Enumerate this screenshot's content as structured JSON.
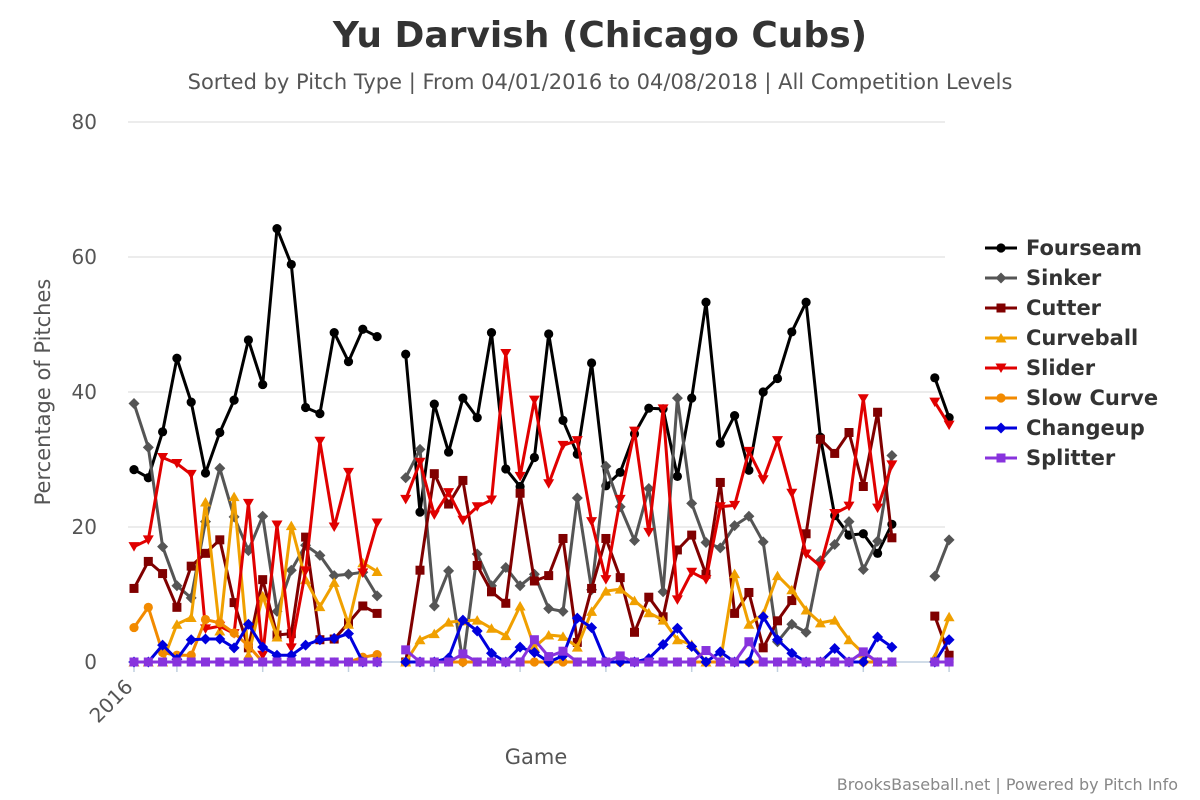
{
  "chart_data": {
    "type": "line",
    "title": "Yu Darvish (Chicago Cubs)",
    "subtitle": "Sorted by Pitch Type | From 04/01/2016 to 04/08/2018 | All Competition Levels",
    "xlabel": "Game",
    "ylabel": "Percentage of Pitches",
    "x_tick_label": "2016",
    "ylim": [
      0,
      80
    ],
    "yticks": [
      0,
      20,
      40,
      60,
      80
    ],
    "grid": true,
    "legend_position": "right",
    "credit": "BrooksBaseball.net | Powered by Pitch Info",
    "segments": [
      [
        1,
        18
      ],
      [
        20,
        54
      ],
      [
        57,
        58
      ]
    ],
    "series": [
      {
        "name": "Fourseam",
        "color": "#000000",
        "marker": "circle",
        "values": [
          28.5,
          27.3,
          34.1,
          45,
          38.5,
          28,
          34,
          38.8,
          47.7,
          41.1,
          64.2,
          58.9,
          37.7,
          36.8,
          48.8,
          44.5,
          49.3,
          48.2,
          null,
          45.6,
          22.2,
          38.2,
          31.1,
          39.1,
          36.2,
          48.8,
          28.6,
          26,
          30.3,
          48.6,
          35.8,
          30.8,
          44.3,
          26.1,
          28.1,
          33.8,
          37.6,
          37.5,
          27.5,
          39.1,
          53.3,
          32.4,
          36.5,
          28.4,
          40,
          42,
          48.9,
          53.3,
          33.3,
          21.7,
          18.8,
          19.0,
          16.1,
          20.4,
          null,
          null,
          42.1,
          36.2
        ]
      },
      {
        "name": "Sinker",
        "color": "#555555",
        "marker": "diamond",
        "values": [
          38.3,
          31.8,
          17.1,
          11.3,
          9.5,
          20.8,
          28.7,
          21.5,
          16.5,
          21.6,
          7.5,
          13.6,
          17.3,
          15.8,
          12.8,
          13,
          13.3,
          9.8,
          null,
          27.3,
          31.5,
          8.3,
          13.5,
          0.0,
          16,
          11.3,
          14.0,
          11.3,
          13,
          7.9,
          7.5,
          24.3,
          10.7,
          29,
          23,
          18,
          25.7,
          10.4,
          39.1,
          23.5,
          17.7,
          16.9,
          20.2,
          21.6,
          17.8,
          3,
          5.6,
          4.4,
          15,
          17.4,
          20.8,
          13.7,
          17.9,
          30.6,
          null,
          null,
          12.7,
          18.1
        ]
      },
      {
        "name": "Cutter",
        "color": "#800000",
        "marker": "square",
        "values": [
          10.9,
          14.9,
          13.1,
          8.1,
          14.2,
          16.1,
          18.1,
          8.8,
          2.1,
          12.2,
          4,
          4.2,
          18.5,
          3.3,
          3.4,
          5.8,
          8.3,
          7.2,
          null,
          0,
          13.6,
          27.9,
          23.4,
          26.9,
          14.3,
          10.4,
          8.7,
          25,
          12,
          12.8,
          18.3,
          2.9,
          10.9,
          18.3,
          12.5,
          4.4,
          9.6,
          6.7,
          16.6,
          18.8,
          13,
          26.6,
          7.2,
          10.3,
          2.1,
          6.1,
          9.1,
          19,
          33,
          30.9,
          34,
          26,
          37,
          18.4,
          null,
          null,
          6.8,
          1
        ]
      },
      {
        "name": "Curveball",
        "color": "#f0a000",
        "marker": "triangle",
        "values": [
          0,
          0,
          0,
          5.6,
          6.6,
          23.7,
          4.6,
          24.5,
          1,
          9.8,
          3.7,
          20.2,
          12.2,
          8.2,
          11.8,
          5.6,
          14.7,
          13.4,
          null,
          0,
          3.3,
          4.2,
          5.9,
          6.1,
          6.2,
          5,
          3.9,
          8.3,
          2.2,
          4,
          3.8,
          2.2,
          7.5,
          10.5,
          10.8,
          9.1,
          7.3,
          6.2,
          3.3,
          2.6,
          0,
          0,
          13.1,
          5.6,
          7.1,
          12.8,
          10.7,
          7.7,
          5.8,
          6.2,
          3.3,
          1.3,
          0,
          0.0,
          null,
          null,
          0.7,
          6.7
        ]
      },
      {
        "name": "Slider",
        "color": "#e00000",
        "marker": "triangle-down",
        "values": [
          17.1,
          18.1,
          30.3,
          29.4,
          27.8,
          4.9,
          5.3,
          4.2,
          23.5,
          1,
          20.3,
          2.1,
          13.5,
          32.7,
          20,
          28.1,
          13.2,
          20.6,
          null,
          24.1,
          29.6,
          21.8,
          25.1,
          21,
          23,
          24,
          45.7,
          27.5,
          38.8,
          26.4,
          32.1,
          32.8,
          20.8,
          12.2,
          24.1,
          34.2,
          19.2,
          37.5,
          9.2,
          13.3,
          12.2,
          23,
          23.2,
          31.2,
          27,
          32.8,
          25,
          16,
          14.2,
          22,
          23.1,
          39,
          22.8,
          29.2,
          null,
          null,
          38.5,
          35.1
        ]
      },
      {
        "name": "Slow Curve",
        "color": "#f28a00",
        "marker": "circle",
        "values": [
          5.1,
          8.1,
          1.4,
          1,
          1,
          6.3,
          5.8,
          4.3,
          2.4,
          0,
          0,
          0,
          0,
          0,
          0,
          0,
          0.7,
          1.1,
          null,
          0,
          0,
          0,
          0,
          0,
          0,
          0,
          0,
          0,
          0,
          0,
          0,
          0,
          0,
          0,
          0,
          0,
          0,
          0,
          0,
          0,
          0,
          0,
          0,
          0,
          0,
          0,
          0,
          0,
          0,
          0,
          0,
          0,
          0,
          0,
          null,
          null,
          0,
          0
        ]
      },
      {
        "name": "Changeup",
        "color": "#0000dd",
        "marker": "diamond",
        "values": [
          0,
          0,
          2.5,
          0.4,
          3.3,
          3.4,
          3.4,
          2.1,
          5.6,
          2.2,
          1,
          1,
          2.5,
          3.3,
          3.5,
          4.2,
          0,
          0,
          null,
          0,
          0,
          0,
          0.6,
          6.2,
          4.6,
          1.3,
          0,
          2.2,
          1.4,
          0,
          0.9,
          6.5,
          5.1,
          0,
          0,
          0,
          0.5,
          2.6,
          5,
          2.3,
          0,
          1.5,
          0,
          0,
          6.7,
          3.3,
          1.3,
          0,
          0,
          2,
          0,
          0,
          3.7,
          2.2,
          null,
          null,
          0,
          3.3
        ]
      },
      {
        "name": "Splitter",
        "color": "#8833dd",
        "marker": "square",
        "values": [
          0,
          0,
          0,
          0,
          0,
          0,
          0,
          0,
          0,
          0,
          0,
          0,
          0,
          0,
          0,
          0,
          0,
          0,
          null,
          1.8,
          0,
          0,
          0,
          1.2,
          0,
          0,
          0,
          0,
          3.3,
          0.8,
          1.6,
          0,
          0,
          0,
          0.9,
          0,
          0,
          0,
          0,
          0,
          1.7,
          0,
          0,
          3,
          0,
          0,
          0,
          0,
          0,
          0,
          0,
          1.5,
          0,
          0,
          null,
          null,
          0,
          0
        ]
      }
    ]
  }
}
